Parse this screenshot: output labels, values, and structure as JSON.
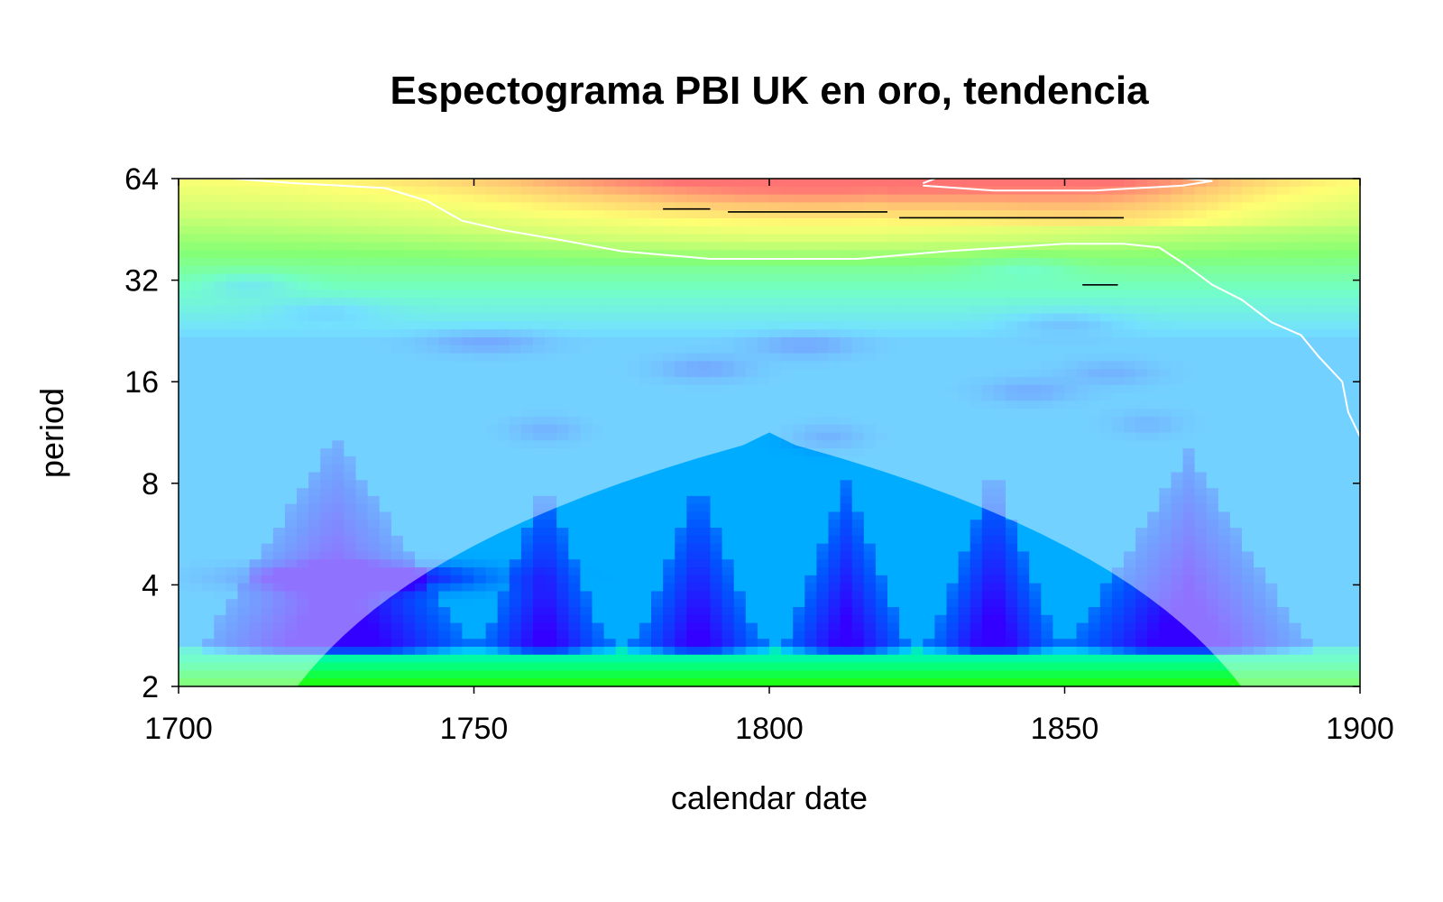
{
  "chart_data": {
    "type": "heatmap",
    "title": "Espectograma PBI UK en oro, tendencia",
    "xlabel": "calendar date",
    "ylabel": "period",
    "x_ticks": [
      "1700",
      "1750",
      "1800",
      "1850",
      "1900"
    ],
    "y_ticks": [
      "2",
      "4",
      "8",
      "16",
      "32",
      "64"
    ],
    "x_range": [
      1700,
      1900
    ],
    "y_range": [
      2,
      64
    ],
    "y_scale": "log2",
    "colormap": [
      "#3300ff",
      "#0055ff",
      "#00c8ff",
      "#00ff99",
      "#22ff00",
      "#aaff00",
      "#ffff00",
      "#ff9900",
      "#ff0000"
    ],
    "colors": {
      "low_power": "#3300ff",
      "high_power": "#ff0000",
      "significance_contour": "#ffffff",
      "ridge_lines": "#000000",
      "cone_shading": "#ffffff"
    },
    "low_period_blobs": [
      {
        "x0": 1705,
        "x1": 1748,
        "center": 1730,
        "peak_period": 11
      },
      {
        "x0": 1752,
        "x1": 1772,
        "center": 1762,
        "peak_period": 8
      },
      {
        "x0": 1778,
        "x1": 1798,
        "center": 1788,
        "peak_period": 8
      },
      {
        "x0": 1803,
        "x1": 1823,
        "center": 1812,
        "peak_period": 8
      },
      {
        "x0": 1828,
        "x1": 1848,
        "center": 1840,
        "peak_period": 9
      },
      {
        "x0": 1852,
        "x1": 1890,
        "center": 1865,
        "peak_period": 10
      }
    ],
    "significance_contour": [
      [
        1700,
        64
      ],
      [
        1709,
        64
      ],
      [
        1720,
        62
      ],
      [
        1735,
        60
      ],
      [
        1742,
        55
      ],
      [
        1748,
        48
      ],
      [
        1755,
        45
      ],
      [
        1765,
        42
      ],
      [
        1775,
        39
      ],
      [
        1790,
        37
      ],
      [
        1800,
        37
      ],
      [
        1815,
        37
      ],
      [
        1830,
        39
      ],
      [
        1840,
        40
      ],
      [
        1850,
        41
      ],
      [
        1860,
        41
      ],
      [
        1866,
        40
      ],
      [
        1870,
        36
      ],
      [
        1875,
        31
      ],
      [
        1880,
        28
      ],
      [
        1885,
        24
      ],
      [
        1890,
        22
      ],
      [
        1893,
        19
      ],
      [
        1897,
        16
      ],
      [
        1898,
        13
      ],
      [
        1900,
        11
      ]
    ],
    "significance_contour_top": [
      [
        1826,
        62
      ],
      [
        1829,
        65
      ],
      [
        1843,
        66
      ],
      [
        1862,
        66
      ],
      [
        1875,
        63
      ],
      [
        1870,
        61
      ],
      [
        1855,
        59
      ],
      [
        1838,
        59
      ],
      [
        1826,
        61
      ]
    ],
    "ridge_lines": [
      [
        [
          1782,
          52
        ],
        [
          1790,
          52
        ]
      ],
      [
        [
          1793,
          51
        ],
        [
          1820,
          51
        ]
      ],
      [
        [
          1822,
          49
        ],
        [
          1860,
          49
        ]
      ],
      [
        [
          1853,
          31
        ],
        [
          1859,
          31
        ]
      ]
    ]
  }
}
